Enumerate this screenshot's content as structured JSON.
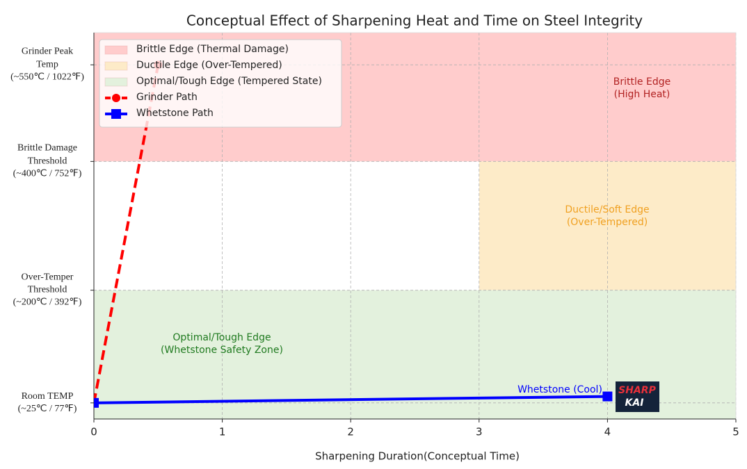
{
  "chart_data": {
    "type": "line",
    "title": "Conceptual Effect of Sharpening Heat and Time on Steel Integrity",
    "x_label": "Sharpening Duration(Conceptual Time)",
    "xlim": [
      0,
      5
    ],
    "xticks": [
      0,
      1,
      2,
      3,
      4,
      5
    ],
    "ylim": [
      0,
      600
    ],
    "yticks": [
      {
        "value": 25,
        "label": "Room TEMP\n(~25℃ / 77℉)"
      },
      {
        "value": 200,
        "label": "Over-Temper\nThreshold\n(~200℃ / 392℉)"
      },
      {
        "value": 400,
        "label": "Brittle Damage\nThreshold\n(~400℃ / 752℉)"
      },
      {
        "value": 550,
        "label": "Grinder Peak\nTemp\n(~550℃ / 1022℉)"
      }
    ],
    "grid": true,
    "regions": [
      {
        "name": "Brittle Edge (Thermal Damage)",
        "color": "#ffcccc",
        "x": [
          0,
          5
        ],
        "y": [
          400,
          600
        ]
      },
      {
        "name": "Ductile Edge (Over-Tempered)",
        "color": "#fdebc8",
        "x": [
          3,
          5
        ],
        "y": [
          200,
          400
        ]
      },
      {
        "name": "Optimal/Tough Edge (Tempered State)",
        "color": "#e3f1dd",
        "x": [
          0,
          5
        ],
        "y": [
          0,
          200
        ]
      }
    ],
    "series": [
      {
        "name": "Grinder Path",
        "color": "#ff0000",
        "linestyle": "dashed",
        "marker": "circle",
        "x": [
          0,
          0.5
        ],
        "values": [
          25,
          550
        ]
      },
      {
        "name": "Whetstone Path",
        "color": "#0000ff",
        "linestyle": "solid",
        "marker": "square",
        "x": [
          0,
          4
        ],
        "values": [
          25,
          35
        ]
      }
    ],
    "annotations": [
      {
        "text": "Brittle Edge\n(High Heat)",
        "color": "#b22222"
      },
      {
        "text": "Ductile/Soft Edge\n(Over-Tempered)",
        "color": "#f0a020"
      },
      {
        "text": "Optimal/Tough Edge\n(Whetstone Safety Zone)",
        "color": "#1f7a1f"
      },
      {
        "text": "Whetstone (Cool)",
        "color": "#0000ff"
      }
    ],
    "legend": "upper left",
    "logo": {
      "line1": "SHARP",
      "line2": "KAI"
    }
  }
}
